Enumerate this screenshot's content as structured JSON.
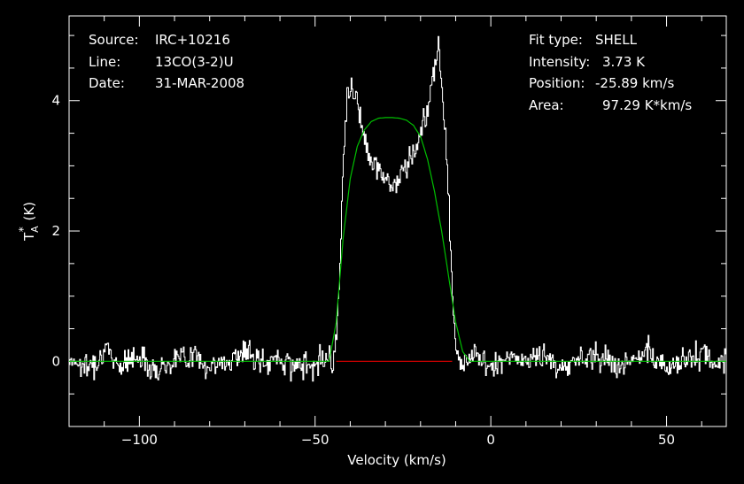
{
  "info_left": [
    {
      "key": "Source:",
      "value": "IRC+10216"
    },
    {
      "key": "Line:",
      "value": "13CO(3-2)U"
    },
    {
      "key": "Date:",
      "value": "31-MAR-2008"
    }
  ],
  "info_right": [
    {
      "key": "Fit type:",
      "value": "SHELL"
    },
    {
      "key": "Intensity:",
      "value": "3.73 K"
    },
    {
      "key": "Position:",
      "value": "-25.89 km/s"
    },
    {
      "key": "Area:",
      "value": "97.29 K*km/s"
    }
  ],
  "chart_data": {
    "type": "line",
    "xlabel": "Velocity (km/s)",
    "ylabel": "T*A (K)",
    "xlim": [
      -120,
      67
    ],
    "ylim": [
      -1.0,
      5.3
    ],
    "xticks": [
      -100,
      -50,
      0,
      50
    ],
    "xtick_labels": [
      "−100",
      "−50",
      "0",
      "50"
    ],
    "yticks": [
      0,
      2,
      4
    ],
    "ytick_labels": [
      "0",
      "2",
      "4"
    ],
    "grid": false,
    "colors": {
      "spectrum": "#ffffff",
      "fit": "#00c000",
      "baseline": "#cc0000",
      "axes": "#ffffff",
      "background": "#000000"
    },
    "series": [
      {
        "type": "spectrum",
        "x": [
          -120,
          -115,
          -110,
          -105,
          -100,
          -95,
          -90,
          -85,
          -80,
          -75,
          -70,
          -65,
          -60,
          -55,
          -50,
          -46,
          -45,
          -44,
          -43,
          -42,
          -41,
          -40,
          -38,
          -36,
          -34,
          -32,
          -30,
          -28,
          -26,
          -24,
          -22,
          -20,
          -18,
          -16,
          -15,
          -14,
          -13,
          -12,
          -11,
          -10,
          -8,
          -5,
          0,
          5,
          10,
          15,
          20,
          25,
          30,
          35,
          40,
          45,
          50,
          55,
          60,
          65,
          67
        ],
        "y": [
          0.05,
          -0.1,
          0.15,
          -0.05,
          0.1,
          -0.15,
          0.05,
          0.1,
          -0.1,
          0.0,
          0.15,
          -0.05,
          0.05,
          -0.1,
          0.0,
          0.1,
          -0.1,
          0.5,
          1.5,
          3.2,
          4.1,
          4.2,
          4.0,
          3.4,
          3.1,
          2.9,
          2.8,
          2.7,
          2.8,
          3.0,
          3.2,
          3.5,
          3.9,
          4.6,
          5.0,
          4.0,
          3.5,
          2.5,
          1.0,
          0.2,
          -0.05,
          0.1,
          -0.1,
          0.05,
          0.0,
          0.1,
          -0.15,
          0.05,
          0.1,
          -0.05,
          0.0,
          0.1,
          -0.1,
          0.05,
          0.1,
          -0.05,
          0.0
        ]
      },
      {
        "type": "fit",
        "x": [
          -120,
          -46,
          -44,
          -42,
          -40,
          -38,
          -36,
          -34,
          -32,
          -30,
          -28,
          -26,
          -24,
          -22,
          -20,
          -18,
          -16,
          -14,
          -12,
          -10,
          -8,
          -6,
          67
        ],
        "y": [
          0,
          0,
          0.6,
          1.9,
          2.8,
          3.3,
          3.55,
          3.68,
          3.73,
          3.74,
          3.74,
          3.73,
          3.7,
          3.62,
          3.45,
          3.1,
          2.6,
          2.0,
          1.3,
          0.6,
          0.15,
          0,
          0
        ]
      },
      {
        "type": "baseline",
        "x": [
          -44,
          -11
        ],
        "y": [
          0,
          0
        ]
      }
    ]
  }
}
